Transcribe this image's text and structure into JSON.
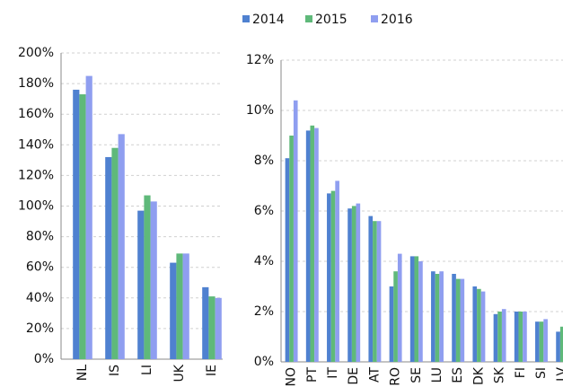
{
  "chart_data": [
    {
      "type": "bar",
      "categories": [
        "NL",
        "IS",
        "LI",
        "UK",
        "IE"
      ],
      "series": [
        {
          "name": "2014",
          "color": "#4f81d0",
          "values": [
            176,
            132,
            97,
            63,
            47
          ]
        },
        {
          "name": "2015",
          "color": "#5fb97a",
          "values": [
            173,
            138,
            107,
            69,
            41
          ]
        },
        {
          "name": "2016",
          "color": "#8f9ef0",
          "values": [
            185,
            147,
            103,
            69,
            40
          ]
        }
      ],
      "ylim": [
        0,
        200
      ],
      "yticks": [
        {
          "value": 0,
          "label": "0%"
        },
        {
          "value": 20,
          "label": "20%"
        },
        {
          "value": 40,
          "label": "40%"
        },
        {
          "value": 60,
          "label": "60%"
        },
        {
          "value": 80,
          "label": "80%"
        },
        {
          "value": 100,
          "label": "100%"
        },
        {
          "value": 120,
          "label": "120%"
        },
        {
          "value": 140,
          "label": "140%"
        },
        {
          "value": 160,
          "label": "160%"
        },
        {
          "value": 180,
          "label": "180%"
        },
        {
          "value": 200,
          "label": "200%"
        }
      ],
      "grid": true
    },
    {
      "type": "bar",
      "categories": [
        "NO",
        "PT",
        "IT",
        "DE",
        "AT",
        "RO",
        "SE",
        "LU",
        "ES",
        "DK",
        "SK",
        "FI",
        "SI",
        "LV"
      ],
      "series": [
        {
          "values": [
            8.1,
            9.2,
            6.7,
            6.1,
            5.8,
            3.0,
            4.2,
            3.6,
            3.5,
            3.0,
            1.9,
            2.0,
            1.6,
            1.2
          ]
        },
        {
          "values": [
            9.0,
            9.4,
            6.8,
            6.2,
            5.6,
            3.6,
            4.2,
            3.5,
            3.3,
            2.9,
            2.0,
            2.0,
            1.6,
            1.4
          ]
        },
        {
          "values": [
            10.4,
            9.3,
            7.2,
            6.3,
            5.6,
            4.3,
            4.0,
            3.6,
            3.3,
            2.8,
            2.1,
            2.0,
            1.7,
            null
          ]
        }
      ],
      "ylim": [
        0,
        12
      ],
      "yticks": [
        {
          "value": 0,
          "label": "0%"
        },
        {
          "value": 2,
          "label": "2%"
        },
        {
          "value": 4,
          "label": "4%"
        },
        {
          "value": 6,
          "label": "6%"
        },
        {
          "value": 8,
          "label": "8%"
        },
        {
          "value": 10,
          "label": "10%"
        },
        {
          "value": 12,
          "label": "12%"
        }
      ],
      "grid": true
    }
  ]
}
